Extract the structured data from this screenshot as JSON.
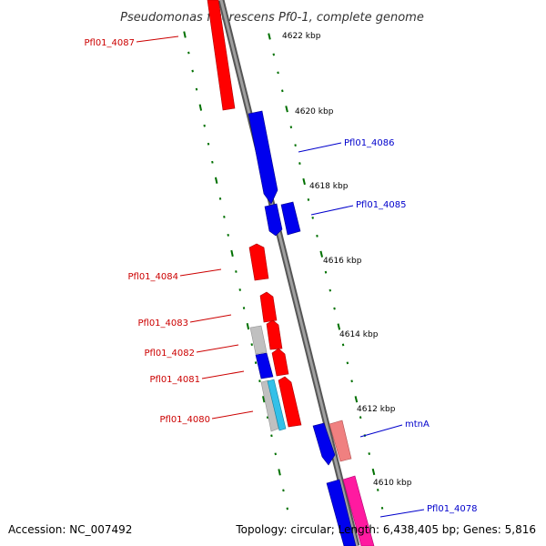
{
  "title": "Pseudomonas fluorescens Pf0-1, complete genome",
  "ruler_labels": [
    "4622 kbp",
    "4620 kbp",
    "4618 kbp",
    "4616 kbp",
    "4614 kbp",
    "4612 kbp",
    "4610 kbp"
  ],
  "genes_left": [
    "Pfl01_4087",
    "Pfl01_4084",
    "Pfl01_4083",
    "Pfl01_4082",
    "Pfl01_4081",
    "Pfl01_4080"
  ],
  "genes_right": [
    "Pfl01_4086",
    "Pfl01_4085",
    "mtnA",
    "Pfl01_4078"
  ],
  "footer": {
    "accession": "Accession: NC_007492",
    "summary": "Topology: circular; Length: 6,438,405 bp; Genes: 5,816"
  },
  "colors": {
    "forward_gene": "#ff0000",
    "reverse_gene": "#0000ff",
    "backbone": "#888888",
    "tick": "#007000",
    "label_red": "#cc0000",
    "label_blue": "#0000cc"
  }
}
